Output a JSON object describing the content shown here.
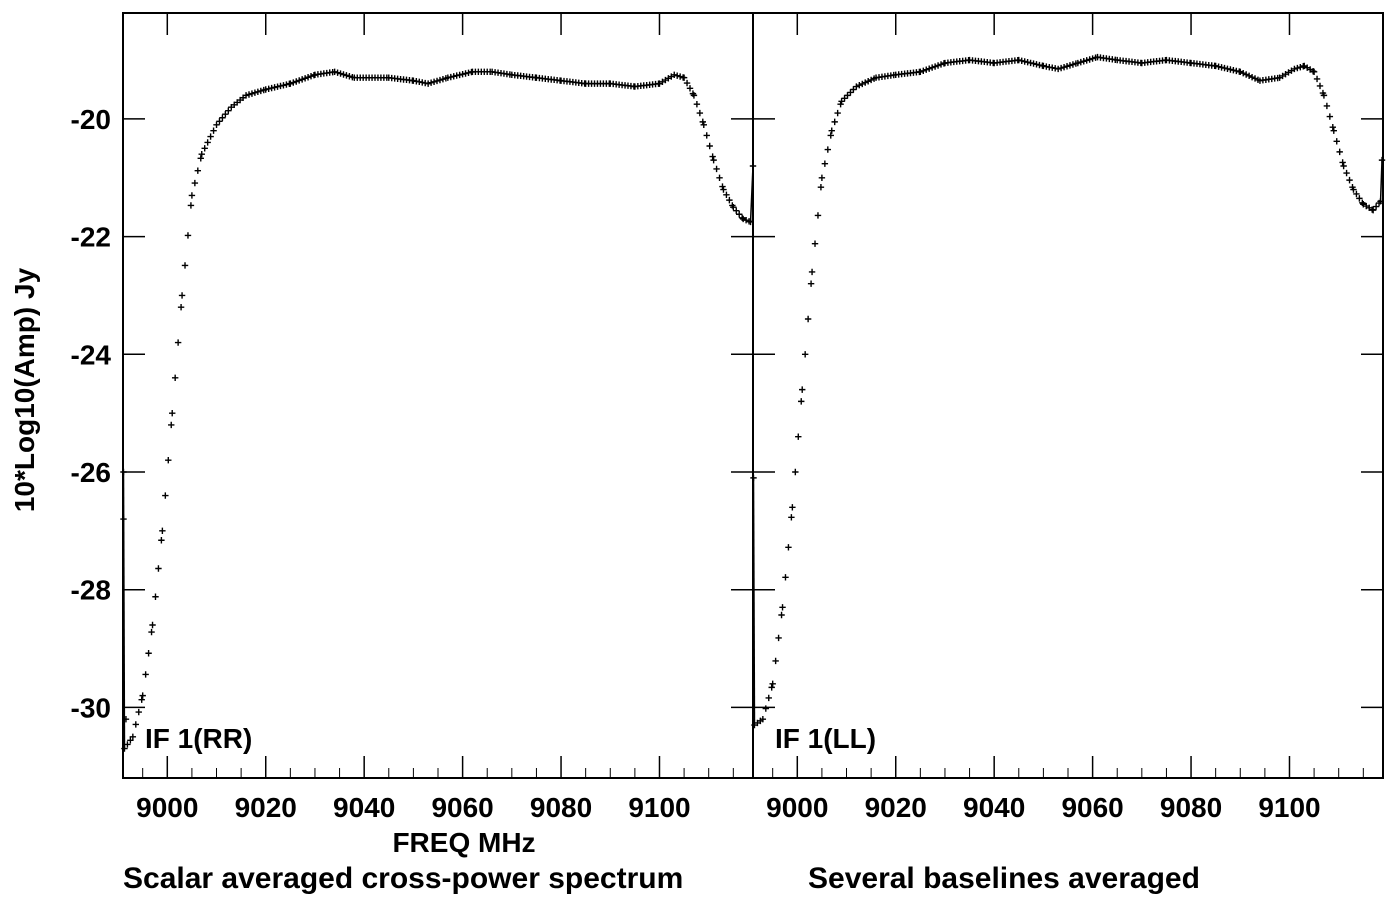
{
  "ylabel": "10*Log10(Amp) Jy",
  "xlabel": "FREQ MHz",
  "caption_left": "Scalar averaged cross-power spectrum",
  "caption_right": "Several baselines averaged",
  "colors": {
    "foreground": "#000000",
    "background": "#ffffff"
  },
  "chart_data": [
    {
      "type": "scatter",
      "marker": "plus",
      "panel_label": "IF 1(RR)",
      "xlim": [
        8991,
        9119
      ],
      "ylim": [
        -31.2,
        -18.2
      ],
      "x_ticks": [
        9000,
        9020,
        9040,
        9060,
        9080,
        9100
      ],
      "x_tick_labels": [
        "9000",
        "9020",
        "9040",
        "9060",
        "9080",
        "9100"
      ],
      "y_ticks": [
        -20,
        -22,
        -24,
        -26,
        -28,
        -30
      ],
      "y_tick_labels": [
        "-20",
        "-22",
        "-24",
        "-26",
        "-28",
        "-30"
      ],
      "curve": [
        [
          8991.3,
          -30.7
        ],
        [
          8993,
          -30.5
        ],
        [
          8995,
          -29.8
        ],
        [
          8997,
          -28.6
        ],
        [
          8999,
          -27.0
        ],
        [
          9001,
          -25.0
        ],
        [
          9003,
          -23.0
        ],
        [
          9005,
          -21.3
        ],
        [
          9007,
          -20.6
        ],
        [
          9010,
          -20.1
        ],
        [
          9013,
          -19.8
        ],
        [
          9016,
          -19.6
        ],
        [
          9020,
          -19.5
        ],
        [
          9025,
          -19.4
        ],
        [
          9030,
          -19.25
        ],
        [
          9034,
          -19.2
        ],
        [
          9038,
          -19.3
        ],
        [
          9045,
          -19.3
        ],
        [
          9050,
          -19.35
        ],
        [
          9053,
          -19.4
        ],
        [
          9057,
          -19.3
        ],
        [
          9062,
          -19.2
        ],
        [
          9066,
          -19.2
        ],
        [
          9070,
          -19.25
        ],
        [
          9075,
          -19.3
        ],
        [
          9080,
          -19.35
        ],
        [
          9085,
          -19.4
        ],
        [
          9090,
          -19.4
        ],
        [
          9095,
          -19.45
        ],
        [
          9100,
          -19.4
        ],
        [
          9103,
          -19.25
        ],
        [
          9105,
          -19.3
        ],
        [
          9107,
          -19.6
        ],
        [
          9109,
          -20.1
        ],
        [
          9111,
          -20.7
        ],
        [
          9113,
          -21.2
        ],
        [
          9115,
          -21.5
        ],
        [
          9117,
          -21.7
        ],
        [
          9118.5,
          -21.75
        ]
      ],
      "outliers": [
        [
          8991.1,
          -26.0
        ],
        [
          8991.1,
          -26.8
        ],
        [
          8991.6,
          -30.2
        ],
        [
          9119,
          -20.8
        ]
      ]
    },
    {
      "type": "scatter",
      "marker": "plus",
      "panel_label": "IF 1(LL)",
      "xlim": [
        8991,
        9119
      ],
      "ylim": [
        -31.2,
        -18.2
      ],
      "x_ticks": [
        9000,
        9020,
        9040,
        9060,
        9080,
        9100
      ],
      "x_tick_labels": [
        "9000",
        "9020",
        "9040",
        "9060",
        "9080",
        "9100"
      ],
      "y_ticks": [
        -20,
        -22,
        -24,
        -26,
        -28,
        -30
      ],
      "curve": [
        [
          8991.3,
          -30.3
        ],
        [
          8993,
          -30.2
        ],
        [
          8995,
          -29.6
        ],
        [
          8997,
          -28.3
        ],
        [
          8999,
          -26.6
        ],
        [
          9001,
          -24.6
        ],
        [
          9003,
          -22.6
        ],
        [
          9005,
          -21.0
        ],
        [
          9007,
          -20.2
        ],
        [
          9009,
          -19.7
        ],
        [
          9012,
          -19.45
        ],
        [
          9016,
          -19.3
        ],
        [
          9020,
          -19.25
        ],
        [
          9025,
          -19.2
        ],
        [
          9030,
          -19.05
        ],
        [
          9035,
          -19.0
        ],
        [
          9040,
          -19.05
        ],
        [
          9045,
          -19.0
        ],
        [
          9050,
          -19.1
        ],
        [
          9053,
          -19.15
        ],
        [
          9057,
          -19.05
        ],
        [
          9061,
          -18.95
        ],
        [
          9065,
          -19.0
        ],
        [
          9070,
          -19.05
        ],
        [
          9075,
          -19.0
        ],
        [
          9080,
          -19.05
        ],
        [
          9085,
          -19.1
        ],
        [
          9090,
          -19.2
        ],
        [
          9094,
          -19.35
        ],
        [
          9098,
          -19.3
        ],
        [
          9101,
          -19.15
        ],
        [
          9103,
          -19.1
        ],
        [
          9105,
          -19.2
        ],
        [
          9107,
          -19.6
        ],
        [
          9109,
          -20.2
        ],
        [
          9111,
          -20.8
        ],
        [
          9113,
          -21.2
        ],
        [
          9115,
          -21.45
        ],
        [
          9117,
          -21.55
        ],
        [
          9118.5,
          -21.4
        ]
      ],
      "outliers": [
        [
          8991.1,
          -26.1
        ],
        [
          8991.1,
          -28.0
        ],
        [
          9118.8,
          -20.7
        ]
      ]
    }
  ]
}
